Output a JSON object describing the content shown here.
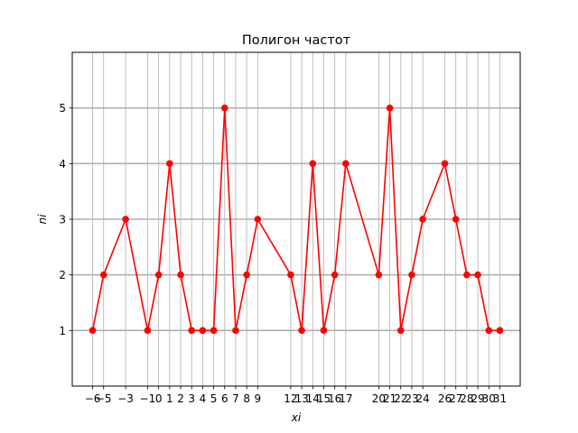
{
  "chart_data": {
    "type": "line",
    "title": "Полигон частот",
    "xlabel": "xi",
    "ylabel": "ni",
    "x": [
      -6,
      -5,
      -3,
      -1,
      0,
      1,
      2,
      3,
      4,
      5,
      6,
      7,
      8,
      9,
      12,
      13,
      14,
      15,
      16,
      17,
      20,
      21,
      22,
      23,
      24,
      26,
      27,
      28,
      29,
      30,
      31
    ],
    "series": [
      {
        "values": [
          1,
          2,
          3,
          1,
          2,
          4,
          2,
          1,
          1,
          1,
          5,
          1,
          2,
          3,
          2,
          1,
          4,
          1,
          2,
          4,
          2,
          5,
          1,
          2,
          3,
          4,
          3,
          2,
          2,
          1,
          1
        ],
        "color": "#ff0000"
      }
    ],
    "xticks": [
      {
        "value": -6,
        "label": "−6"
      },
      {
        "value": -5,
        "label": "−5"
      },
      {
        "value": -3,
        "label": "−3"
      },
      {
        "value": -1,
        "label": "−1"
      },
      {
        "value": 0,
        "label": "0"
      },
      {
        "value": 1,
        "label": "1"
      },
      {
        "value": 2,
        "label": "2"
      },
      {
        "value": 3,
        "label": "3"
      },
      {
        "value": 4,
        "label": "4"
      },
      {
        "value": 5,
        "label": "5"
      },
      {
        "value": 6,
        "label": "6"
      },
      {
        "value": 7,
        "label": "7"
      },
      {
        "value": 8,
        "label": "8"
      },
      {
        "value": 9,
        "label": "9"
      },
      {
        "value": 12,
        "label": "12"
      },
      {
        "value": 13,
        "label": "13"
      },
      {
        "value": 14,
        "label": "14"
      },
      {
        "value": 15,
        "label": "15"
      },
      {
        "value": 16,
        "label": "16"
      },
      {
        "value": 17,
        "label": "17"
      },
      {
        "value": 20,
        "label": "20"
      },
      {
        "value": 21,
        "label": "21"
      },
      {
        "value": 22,
        "label": "22"
      },
      {
        "value": 23,
        "label": "23"
      },
      {
        "value": 24,
        "label": "24"
      },
      {
        "value": 26,
        "label": "26"
      },
      {
        "value": 27,
        "label": "27"
      },
      {
        "value": 28,
        "label": "28"
      },
      {
        "value": 29,
        "label": "29"
      },
      {
        "value": 30,
        "label": "30"
      },
      {
        "value": 31,
        "label": "31"
      }
    ],
    "yticks": [
      {
        "value": 1,
        "label": "1"
      },
      {
        "value": 2,
        "label": "2"
      },
      {
        "value": 3,
        "label": "3"
      },
      {
        "value": 4,
        "label": "4"
      },
      {
        "value": 5,
        "label": "5"
      }
    ],
    "xlim": [
      -7.85,
      32.85
    ],
    "ylim": [
      0,
      6
    ],
    "grid": true
  }
}
